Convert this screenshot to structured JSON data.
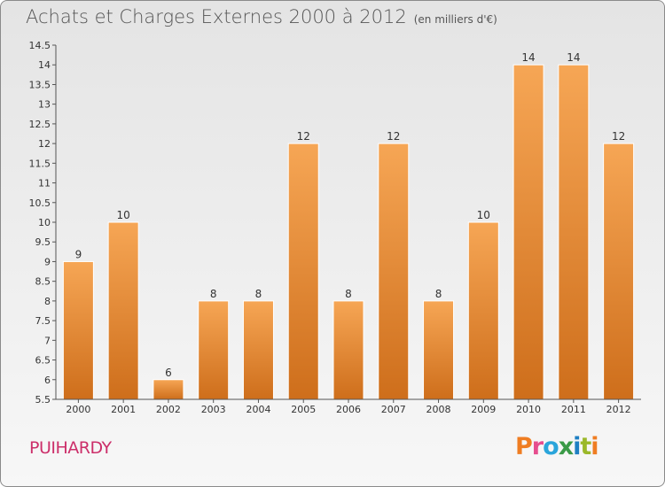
{
  "header": {
    "title": "Achats et Charges Externes 2000 à 2012",
    "unit": "(en milliers d'€)"
  },
  "footer": {
    "commune": "PUIHARDY",
    "logo_letters": [
      "P",
      "r",
      "o",
      "x",
      "i",
      "t",
      "i"
    ]
  },
  "colors": {
    "bar_light": "#f6a655",
    "bar_dark": "#ce6e1b",
    "commune_text": "#cc2f6a"
  },
  "chart_data": {
    "type": "bar",
    "title": "Achats et Charges Externes 2000 à 2012",
    "subtitle": "(en milliers d'€)",
    "categories": [
      "2000",
      "2001",
      "2002",
      "2003",
      "2004",
      "2005",
      "2006",
      "2007",
      "2008",
      "2009",
      "2010",
      "2011",
      "2012"
    ],
    "values": [
      9,
      10,
      6,
      8,
      8,
      12,
      8,
      12,
      8,
      10,
      14,
      14,
      12
    ],
    "ylim": [
      5.5,
      14.5
    ],
    "yticks": [
      "5.5",
      "6",
      "6.5",
      "7",
      "7.5",
      "8",
      "8.5",
      "9",
      "9.5",
      "10",
      "10.5",
      "11",
      "11.5",
      "12",
      "12.5",
      "13",
      "13.5",
      "14",
      "14.5"
    ],
    "grid": false,
    "legend": "none"
  }
}
